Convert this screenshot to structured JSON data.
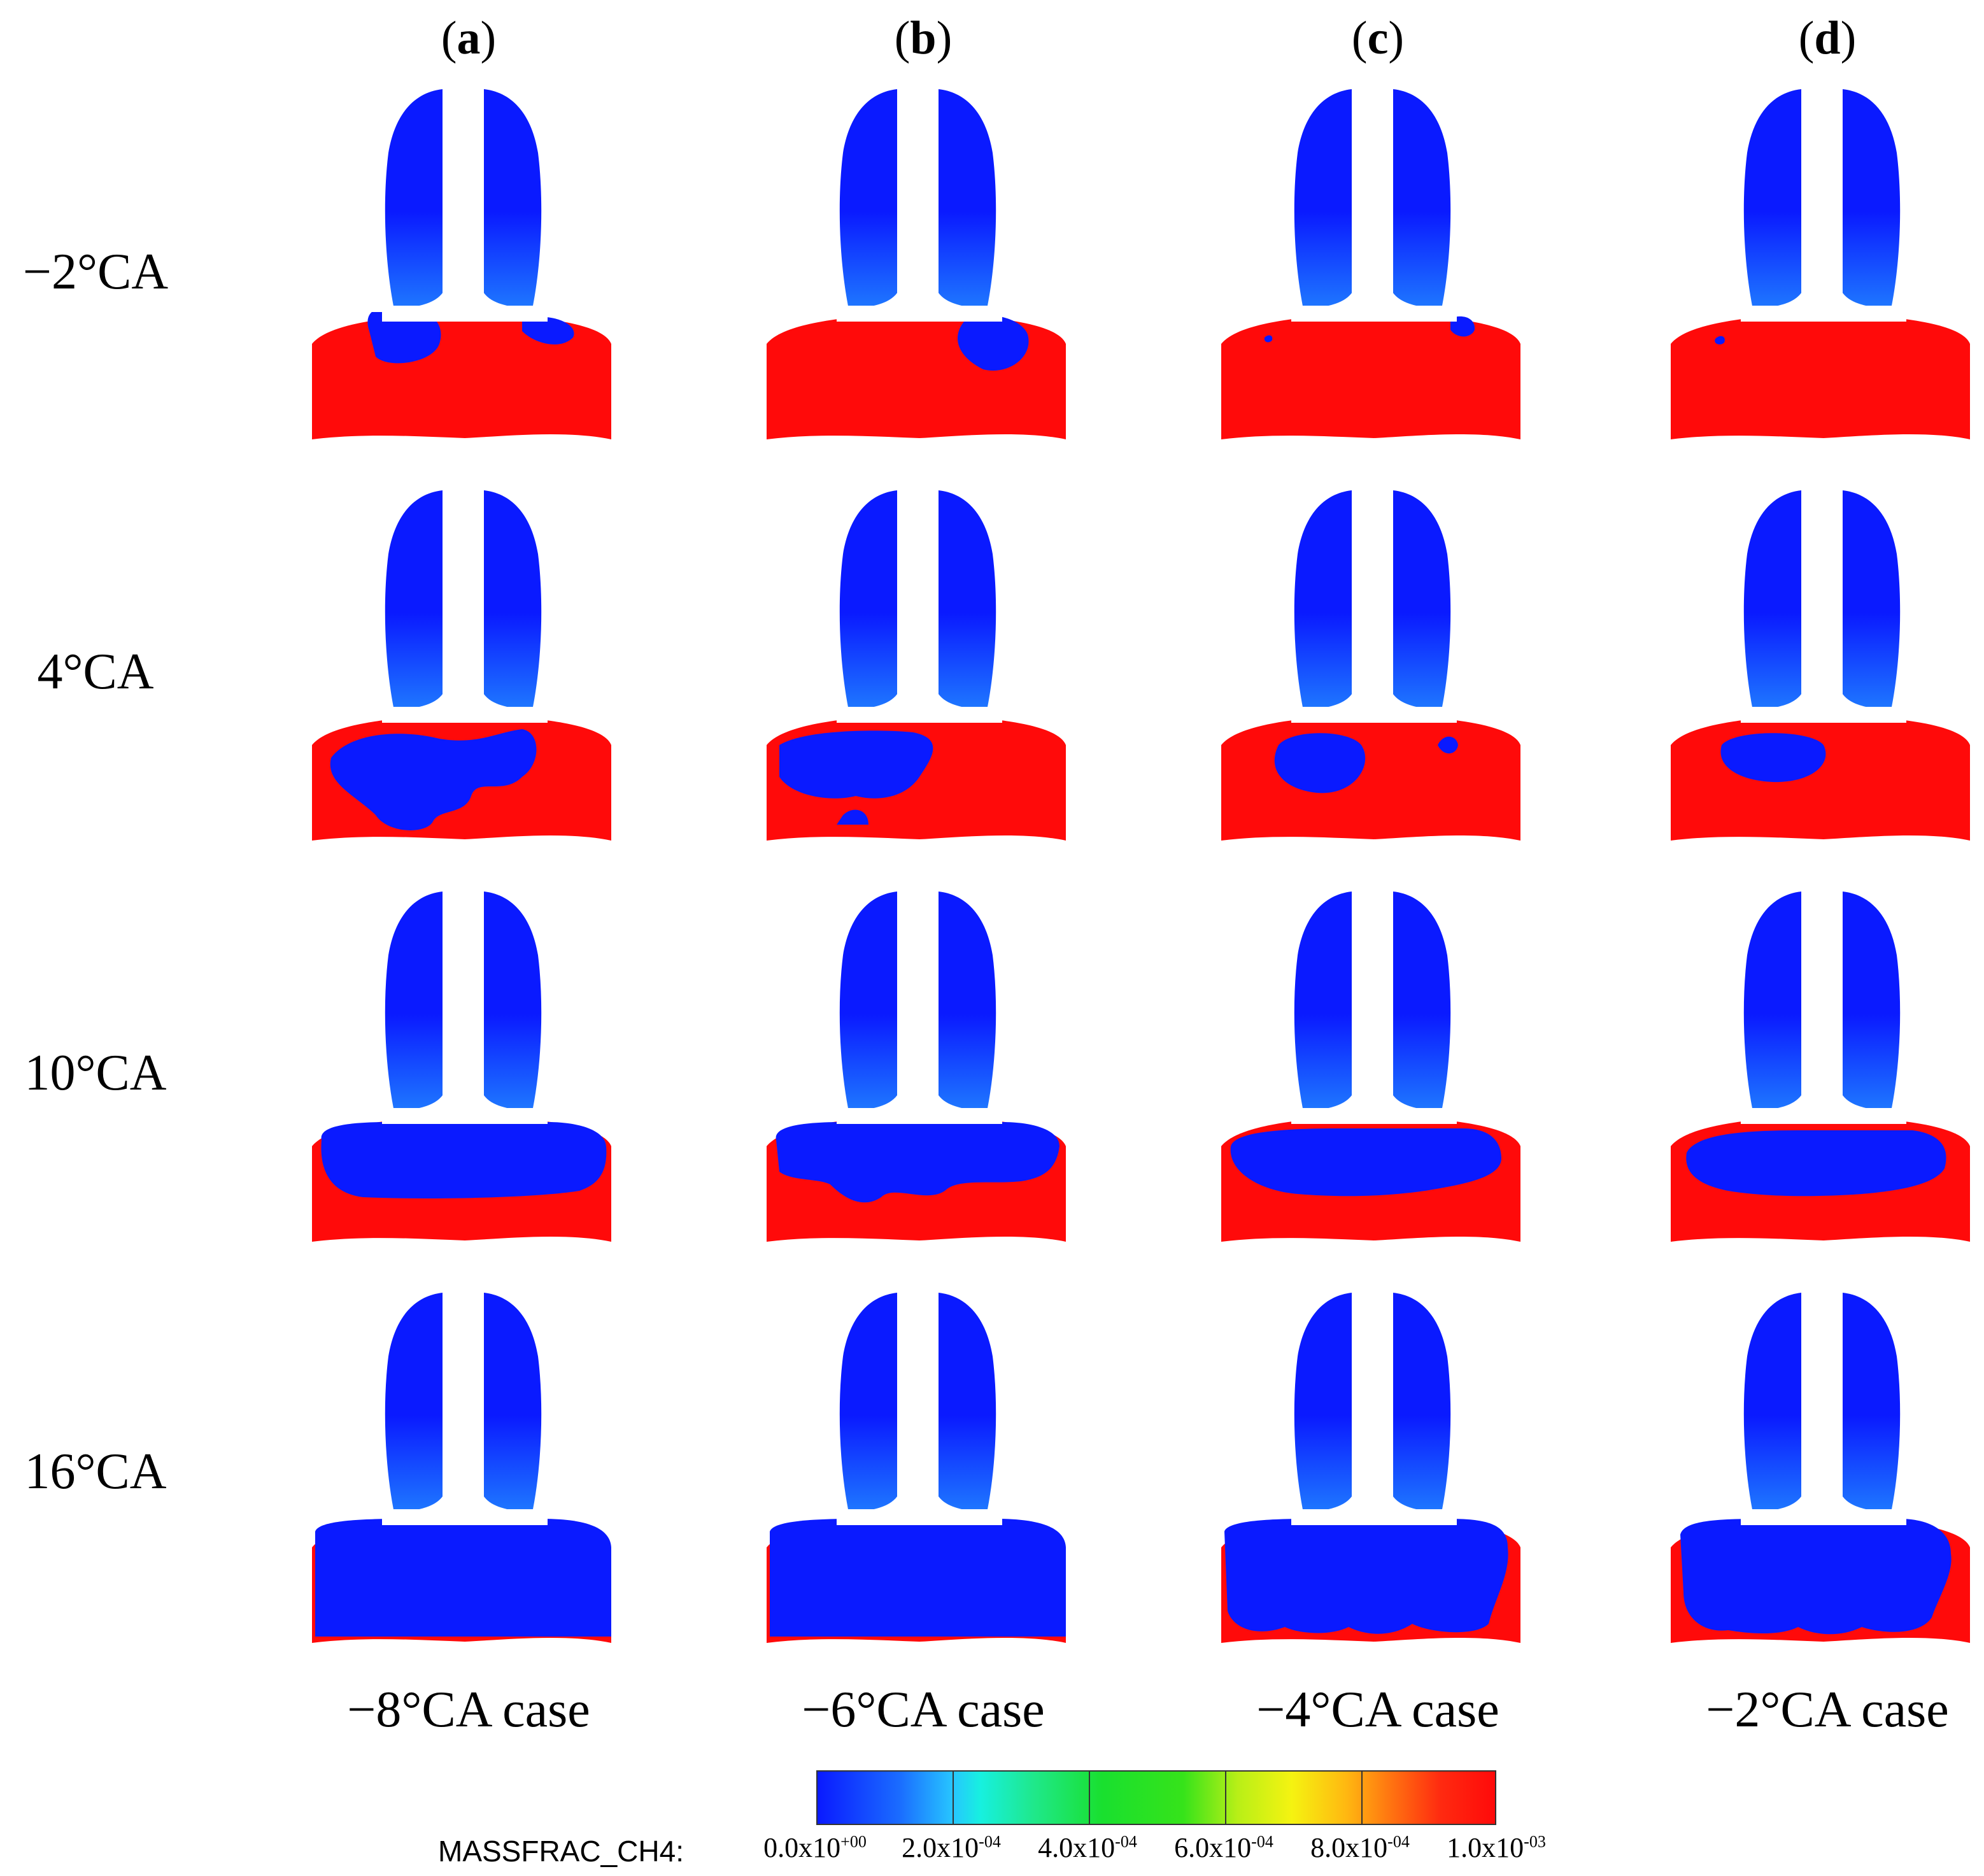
{
  "columns": [
    {
      "letter": "a",
      "case": "−8°CA case"
    },
    {
      "letter": "b",
      "case": "−6°CA case"
    },
    {
      "letter": "c",
      "case": "−4°CA case"
    },
    {
      "letter": "d",
      "case": "−2°CA case"
    }
  ],
  "rows": [
    "−2°CA",
    "4°CA",
    "10°CA",
    "16°CA"
  ],
  "colorbar": {
    "name": "MASSFRAC_CH4:",
    "ticks": [
      "0.0x10+00",
      "2.0x10-04",
      "4.0x10-04",
      "6.0x10-04",
      "8.0x10-04",
      "1.0x10-03"
    ],
    "tick_mantissas": [
      "0.0x10",
      "2.0x10",
      "4.0x10",
      "6.0x10",
      "8.0x10",
      "1.0x10"
    ],
    "tick_exponents": [
      "+00",
      "-04",
      "-04",
      "-04",
      "-04",
      "-03"
    ],
    "low_color": "#0a1aff",
    "high_color": "#ff0a0a"
  },
  "colors": {
    "ch4_low": "#0a1aff",
    "ch4_high": "#ff0a0a",
    "port_blue_top": "#0a1aff",
    "port_blue_bottom": "#1f7bff"
  }
}
